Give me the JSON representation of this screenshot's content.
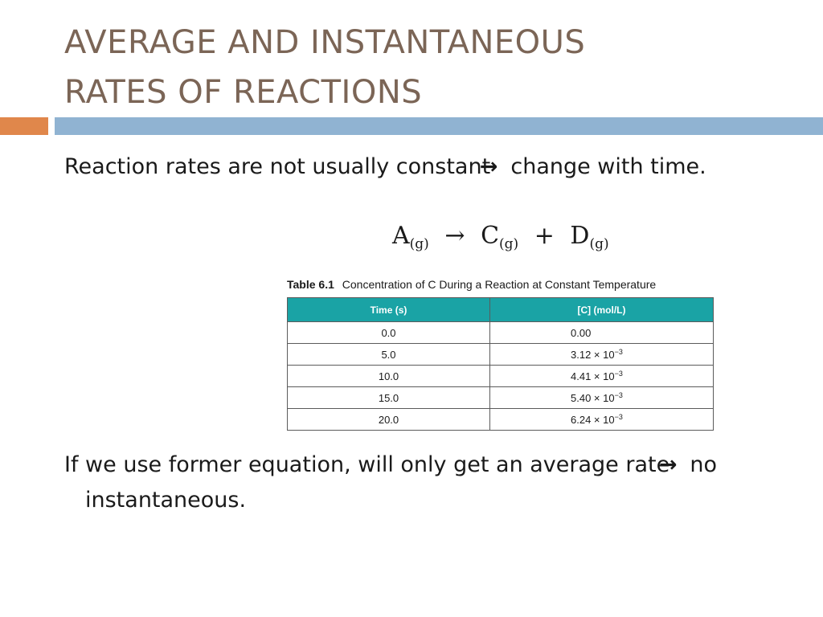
{
  "slide": {
    "title_line1": "AVERAGE AND INSTANTANEOUS",
    "title_line2": "RATES OF REACTIONS",
    "bullet1_before": "Reaction rates are not usually constant",
    "bullet1_arrow": "→",
    "bullet1_after": "change with time.",
    "bullet2_before": "If we use former equation, will only get an average rate",
    "bullet2_arrow": "→",
    "bullet2_after": "no instantaneous."
  },
  "equation": {
    "reactant": "A",
    "reactant_state": "(g)",
    "arrow": "→",
    "product1": "C",
    "product1_state": "(g)",
    "plus": "+",
    "product2": "D",
    "product2_state": "(g)"
  },
  "table": {
    "caption_number": "Table 6.1",
    "caption_text": "Concentration of C During a Reaction at Constant Temperature",
    "headers": [
      "Time (s)",
      "[C] (mol/L)"
    ],
    "rows": [
      {
        "time": "0.0",
        "conc": "0.00",
        "exp": ""
      },
      {
        "time": "5.0",
        "conc": "3.12 × 10",
        "exp": "−3"
      },
      {
        "time": "10.0",
        "conc": "4.41 × 10",
        "exp": "−3"
      },
      {
        "time": "15.0",
        "conc": "5.40 × 10",
        "exp": "−3"
      },
      {
        "time": "20.0",
        "conc": "6.24 × 10",
        "exp": "−3"
      }
    ]
  },
  "colors": {
    "title": "#7b6556",
    "accent_bar": "#e0874b",
    "main_bar": "#90b3d2",
    "table_header": "#1aa3a5"
  }
}
